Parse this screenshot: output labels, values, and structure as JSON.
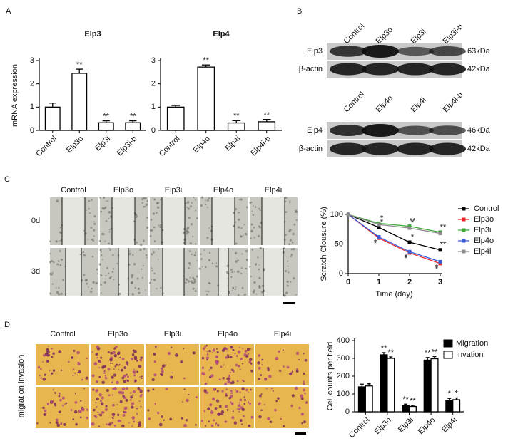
{
  "panel_labels": [
    "A",
    "B",
    "C",
    "D"
  ],
  "chart_data": [
    {
      "type": "bar",
      "title": "Elp3",
      "ylabel": "mRNA expression",
      "categories": [
        "Control",
        "Elp3o",
        "Elp3i",
        "Elp3i-b"
      ],
      "values": [
        1.0,
        2.45,
        0.33,
        0.33
      ],
      "errors": [
        0.17,
        0.18,
        0.08,
        0.08
      ],
      "significance": [
        null,
        "**",
        "**",
        "**"
      ],
      "color": "#ffffff",
      "ylim": [
        0,
        3
      ],
      "yticks": [
        0,
        1,
        2,
        3
      ]
    },
    {
      "type": "bar",
      "title": "Elp4",
      "categories": [
        "Control",
        "Elp4o",
        "Elp4i",
        "Elp4i-b"
      ],
      "values": [
        1.0,
        2.72,
        0.32,
        0.37
      ],
      "errors": [
        0.07,
        0.09,
        0.1,
        0.1
      ],
      "significance": [
        null,
        "**",
        "**",
        "**"
      ],
      "color": "#ffffff",
      "ylim": [
        0,
        3
      ],
      "yticks": [
        0,
        1,
        2,
        3
      ]
    },
    {
      "type": "line",
      "xlabel": "Time (day)",
      "ylabel": "Scratch Clousure (%)",
      "x": [
        0,
        1,
        2,
        3
      ],
      "xlim": [
        0,
        3
      ],
      "xticks": [
        0,
        1,
        2,
        3
      ],
      "ylim": [
        0,
        100
      ],
      "yticks": [
        0,
        50,
        100
      ],
      "legend": "right",
      "series": [
        {
          "name": "Control",
          "color": "#000000",
          "values": [
            100,
            78,
            53,
            40
          ],
          "significance": [
            null,
            "*",
            "*",
            "**"
          ]
        },
        {
          "name": "Elp3o",
          "color": "#e8262a",
          "values": [
            100,
            60,
            35,
            17
          ],
          "significance": [
            null,
            "*",
            "*",
            "*"
          ]
        },
        {
          "name": "Elp3i",
          "color": "#3aaa35",
          "values": [
            100,
            85,
            80,
            70
          ],
          "significance": [
            null,
            "*",
            "**",
            "**"
          ]
        },
        {
          "name": "Elp4o",
          "color": "#3b5bd9",
          "values": [
            100,
            62,
            37,
            20
          ],
          "significance": [
            null,
            "*",
            "*",
            "*"
          ]
        },
        {
          "name": "Elp4i",
          "color": "#8c8c8c",
          "values": [
            100,
            83,
            77,
            68
          ],
          "significance": [
            null,
            null,
            "*",
            null
          ]
        }
      ]
    },
    {
      "type": "bar",
      "ylabel": "Cell counts per field",
      "categories": [
        "Control",
        "Elp3o",
        "Elp3i",
        "Elp4o",
        "Elp4i"
      ],
      "ylim": [
        0,
        400
      ],
      "yticks": [
        0,
        100,
        200,
        300,
        400
      ],
      "legend": "top-right",
      "series": [
        {
          "name": "Migration",
          "color": "#000000",
          "values": [
            140,
            320,
            35,
            290,
            65
          ],
          "errors": [
            15,
            12,
            8,
            15,
            10
          ],
          "significance": [
            null,
            "**",
            "**",
            "**",
            "*"
          ]
        },
        {
          "name": "Invation",
          "color": "#ffffff",
          "values": [
            145,
            300,
            30,
            298,
            68
          ],
          "errors": [
            12,
            8,
            6,
            12,
            10
          ],
          "significance": [
            null,
            "**",
            "**",
            "**",
            "*"
          ]
        }
      ]
    }
  ],
  "blots": [
    {
      "lanes": [
        "Control",
        "Elp3o",
        "Elp3i",
        "Elp3i-b"
      ],
      "rows": [
        {
          "label": "Elp3",
          "size": "63kDa"
        },
        {
          "label": "β-actin",
          "size": "42kDa"
        }
      ]
    },
    {
      "lanes": [
        "Control",
        "Elp4o",
        "Elp4i",
        "Elp4i-b"
      ],
      "rows": [
        {
          "label": "Elp4",
          "size": "46kDa"
        },
        {
          "label": "β-actin",
          "size": "42kDa"
        }
      ]
    }
  ],
  "scratch_images": {
    "columns": [
      "Control",
      "Elp3o",
      "Elp3i",
      "Elp4o",
      "Elp4i"
    ],
    "rows": [
      "0d",
      "3d"
    ]
  },
  "transwell_images": {
    "columns": [
      "Control",
      "Elp3o",
      "Elp3i",
      "Elp4o",
      "Elp4i"
    ],
    "row_label": "migration invasion"
  }
}
